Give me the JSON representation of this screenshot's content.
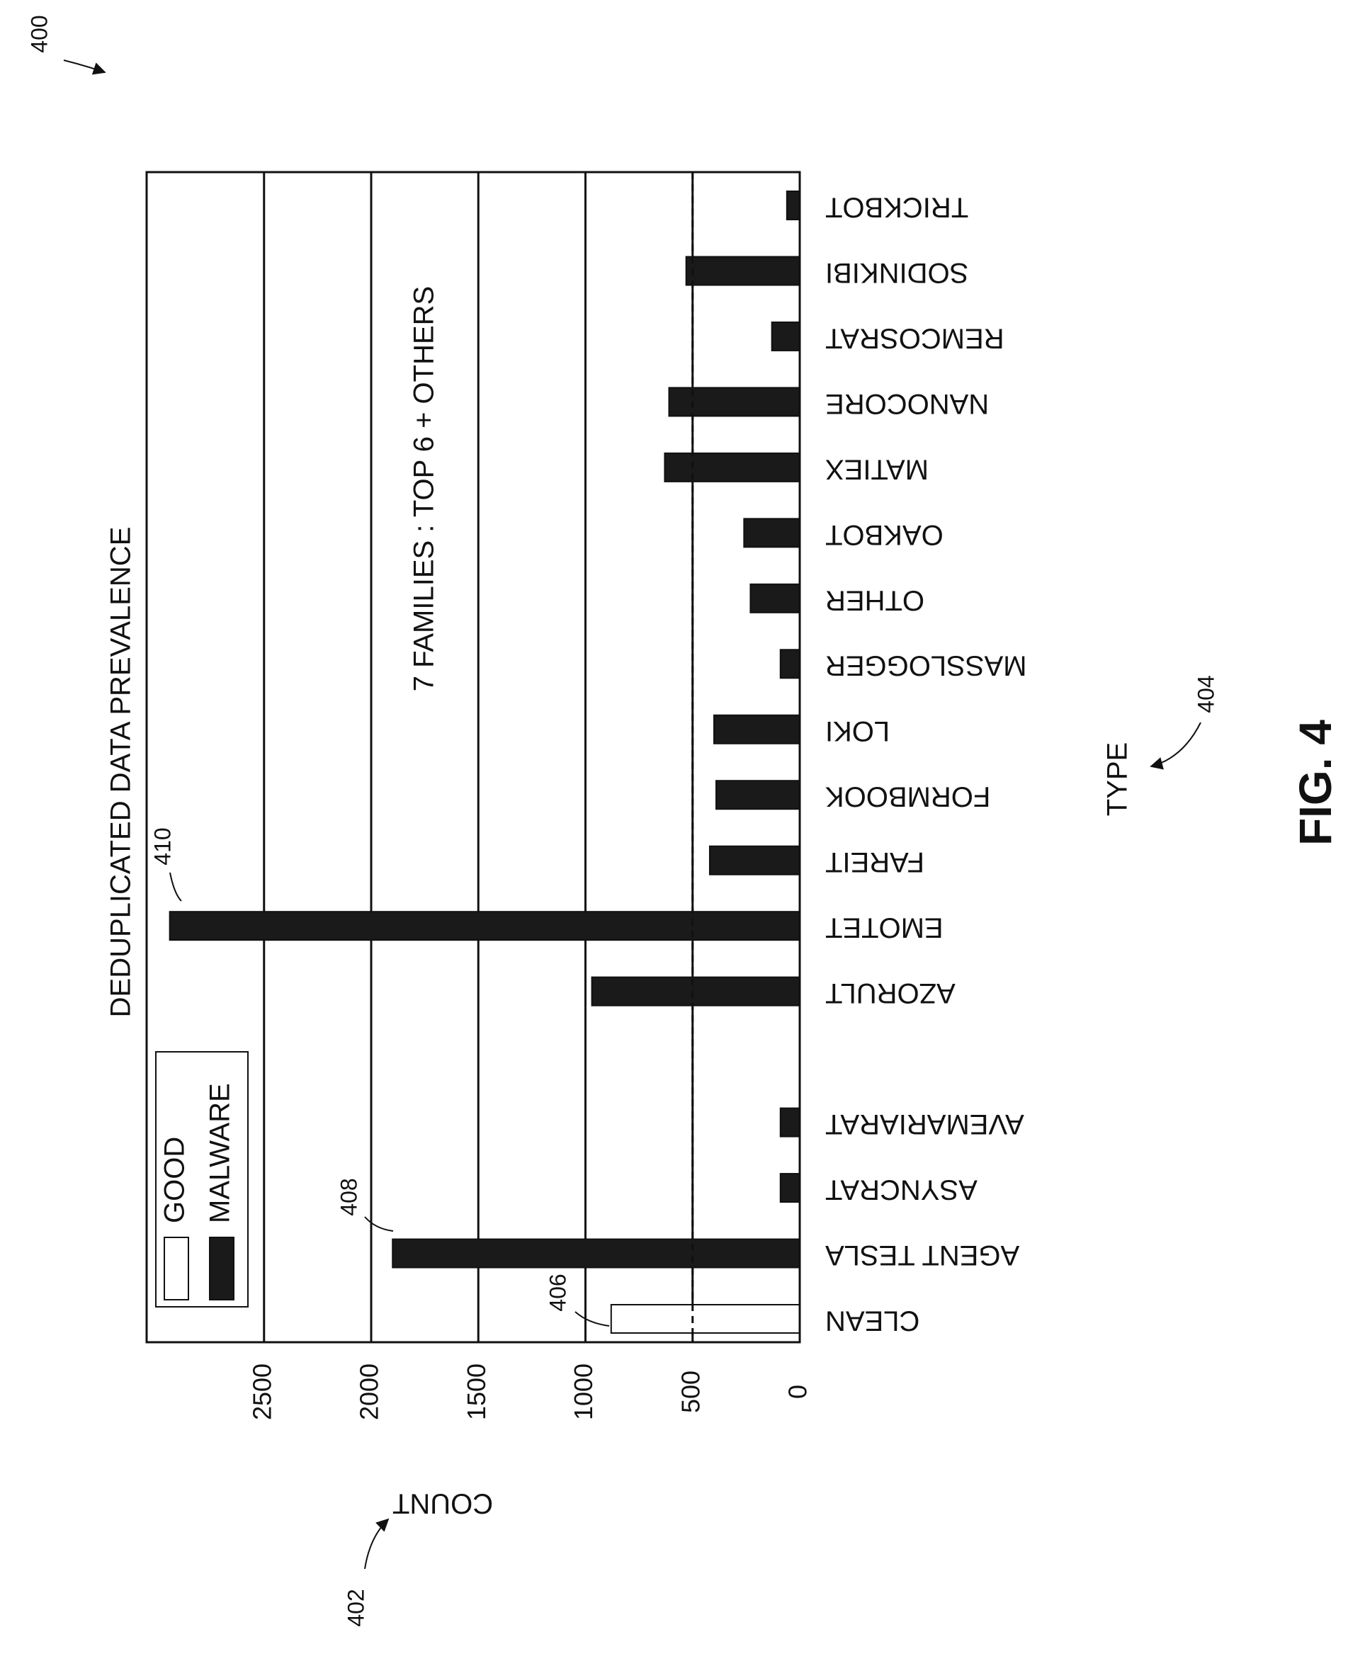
{
  "figure": {
    "ref_number": "400",
    "label": "FIG. 4"
  },
  "chart_data": {
    "type": "bar",
    "title": "DEDUPLICATED DATA PREVALENCE",
    "annotation": "7 FAMILIES : TOP 6 + OTHERS",
    "xlabel": "TYPE",
    "ylabel": "COUNT",
    "ylim": [
      0,
      3050
    ],
    "yticks": [
      0,
      500,
      1000,
      1500,
      2000,
      2500
    ],
    "grid": true,
    "orientation": "rotated-90",
    "threshold_line": 500,
    "legend": {
      "placement": "top-left",
      "entries": [
        {
          "name": "GOOD",
          "color": "#ffffff"
        },
        {
          "name": "MALWARE",
          "color": "#1a1a1a"
        }
      ]
    },
    "categories": [
      "CLEAN",
      "AGENT TESLA",
      "ASYNCRAT",
      "AVEMARIARAT",
      "AZORULT",
      "EMOTET",
      "FAREIT",
      "FORMBOOK",
      "LOKI",
      "MASSLOGGER",
      "OTHER",
      "OAKBOT",
      "MATIEX",
      "NANOCORE",
      "REMCOSRAT",
      "SODINKIBI",
      "TRICKBOT"
    ],
    "gap_after_index": 3,
    "series": [
      {
        "name": "GOOD",
        "values": [
          880,
          0,
          0,
          0,
          0,
          0,
          0,
          0,
          0,
          0,
          0,
          0,
          0,
          0,
          0,
          0,
          0
        ]
      },
      {
        "name": "MALWARE",
        "values": [
          0,
          1900,
          90,
          90,
          970,
          2940,
          420,
          390,
          400,
          90,
          230,
          260,
          630,
          610,
          130,
          530,
          60
        ]
      }
    ],
    "references": {
      "y_axis": "402",
      "x_axis": "404",
      "clean_bar": "406",
      "agent_tesla_bar": "408",
      "emotet_bar": "410"
    }
  }
}
